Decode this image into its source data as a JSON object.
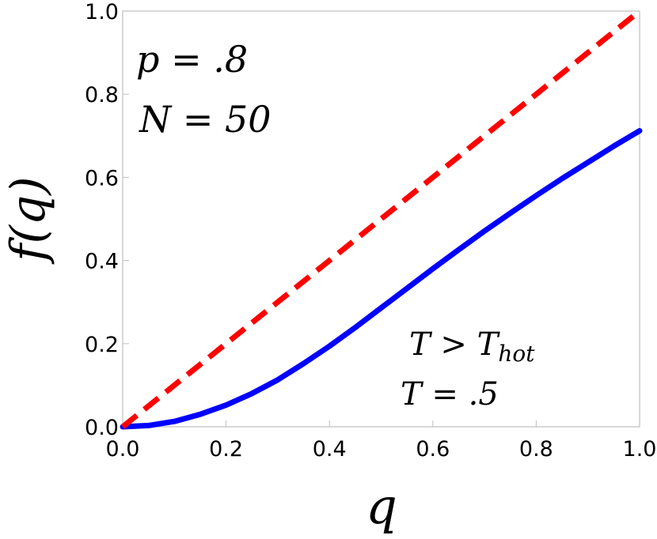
{
  "chart_data": {
    "type": "line",
    "title": "",
    "xlabel": "q",
    "ylabel": "f(q)",
    "xlim": [
      0,
      1
    ],
    "ylim": [
      0,
      1
    ],
    "grid": false,
    "x_ticks": [
      "0.0",
      "0.2",
      "0.4",
      "0.6",
      "0.8",
      "1.0"
    ],
    "y_ticks": [
      "0.0",
      "0.2",
      "0.4",
      "0.6",
      "0.8",
      "1.0"
    ],
    "series": [
      {
        "color": "#0000ff",
        "style": "solid",
        "x": [
          0,
          0.05,
          0.1,
          0.15,
          0.2,
          0.25,
          0.3,
          0.35,
          0.4,
          0.45,
          0.5,
          0.55,
          0.6,
          0.65,
          0.7,
          0.75,
          0.8,
          0.85,
          0.9,
          0.95,
          1.0
        ],
        "y": [
          0,
          0.003,
          0.013,
          0.03,
          0.052,
          0.08,
          0.113,
          0.152,
          0.194,
          0.239,
          0.286,
          0.333,
          0.38,
          0.426,
          0.471,
          0.514,
          0.556,
          0.597,
          0.636,
          0.675,
          0.712
        ]
      },
      {
        "color": "#ff0000",
        "style": "dashed",
        "x": [
          0,
          1
        ],
        "y": [
          0,
          1
        ]
      }
    ],
    "annotations": {
      "p_label": "p = .8",
      "N_label": "N = 50",
      "T_cond_main": "T > T",
      "T_cond_sub": "hot",
      "T_value": "T = .5"
    }
  }
}
